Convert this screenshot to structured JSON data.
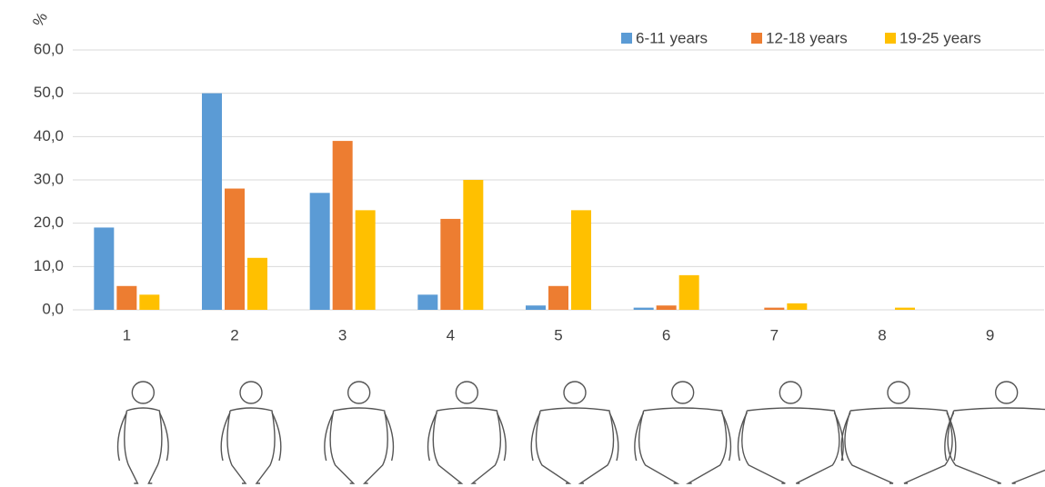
{
  "chart_data": {
    "type": "bar",
    "y_label": "%",
    "categories": [
      "1",
      "2",
      "3",
      "4",
      "5",
      "6",
      "7",
      "8",
      "9"
    ],
    "series": [
      {
        "name": "6-11 years",
        "color": "#5b9bd5",
        "values": [
          19,
          50,
          27,
          3.5,
          1,
          0.5,
          0,
          0,
          0
        ]
      },
      {
        "name": "12-18 years",
        "color": "#ed7d31",
        "values": [
          5.5,
          28,
          39,
          21,
          5.5,
          1,
          0.5,
          0,
          0
        ]
      },
      {
        "name": "19-25 years",
        "color": "#ffc000",
        "values": [
          3.5,
          12,
          23,
          30,
          23,
          8,
          1.5,
          0.5,
          0
        ]
      }
    ],
    "ylim": [
      0,
      60
    ],
    "yticks": [
      {
        "value": 0,
        "label": "0,0"
      },
      {
        "value": 10,
        "label": "10,0"
      },
      {
        "value": 20,
        "label": "20,0"
      },
      {
        "value": 30,
        "label": "30,0"
      },
      {
        "value": 40,
        "label": "40,0"
      },
      {
        "value": 50,
        "label": "50,0"
      },
      {
        "value": 60,
        "label": "60,0"
      }
    ],
    "grid": true,
    "legend": "top-right"
  }
}
